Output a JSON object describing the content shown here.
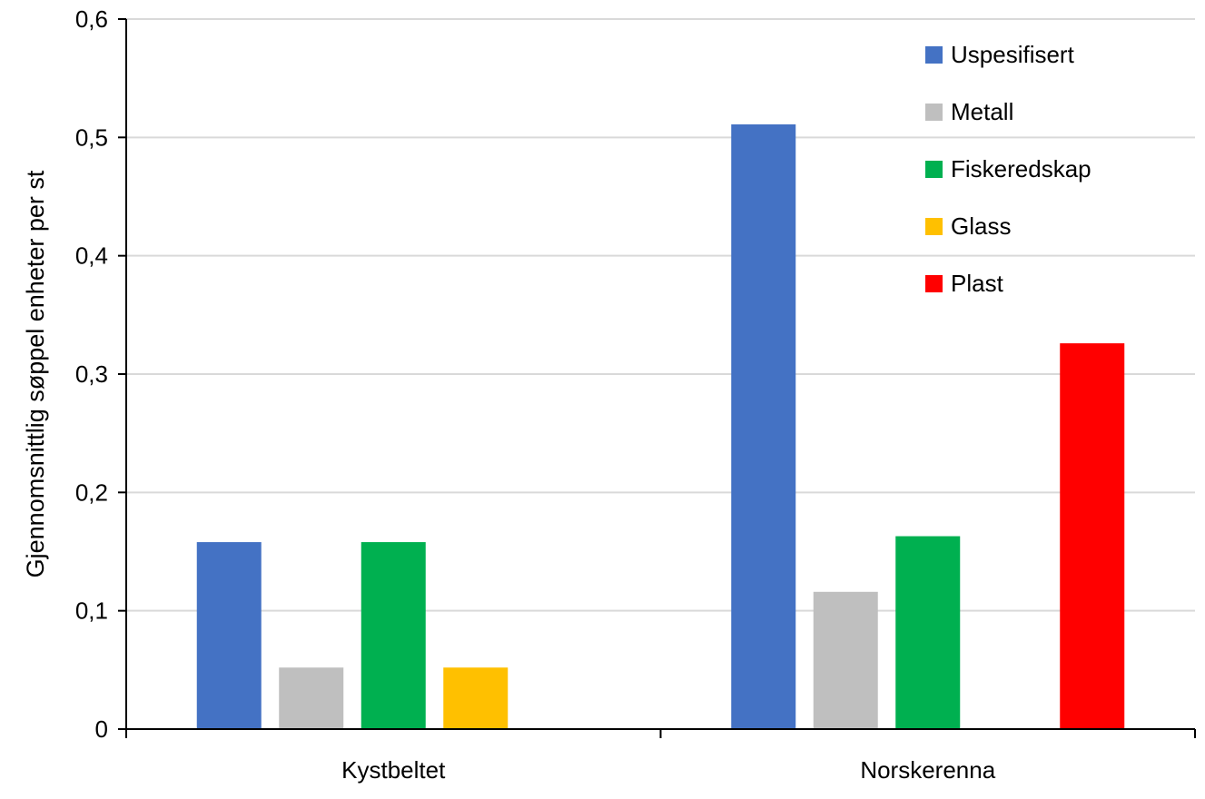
{
  "chart_data": {
    "type": "bar",
    "title": "",
    "xlabel": "",
    "ylabel": "Gjennomsnittlig søppel enheter per st",
    "ylim": [
      0,
      0.6
    ],
    "yticks": [
      0,
      0.1,
      0.2,
      0.3,
      0.4,
      0.5,
      0.6
    ],
    "ytick_labels": [
      "0",
      "0,1",
      "0,2",
      "0,3",
      "0,4",
      "0,5",
      "0,6"
    ],
    "grid": true,
    "legend_position": "top-right",
    "categories": [
      "Kystbeltet",
      "Norskerenna"
    ],
    "series": [
      {
        "name": "Uspesifisert",
        "color": "#4472C4",
        "values": [
          0.158,
          0.511
        ]
      },
      {
        "name": "Metall",
        "color": "#BFBFBF",
        "values": [
          0.052,
          0.116
        ]
      },
      {
        "name": "Fiskeredskap",
        "color": "#00B050",
        "values": [
          0.158,
          0.163
        ]
      },
      {
        "name": "Glass",
        "color": "#FFC000",
        "values": [
          0.052,
          0
        ]
      },
      {
        "name": "Plast",
        "color": "#FF0000",
        "values": [
          0,
          0.326
        ]
      }
    ]
  }
}
